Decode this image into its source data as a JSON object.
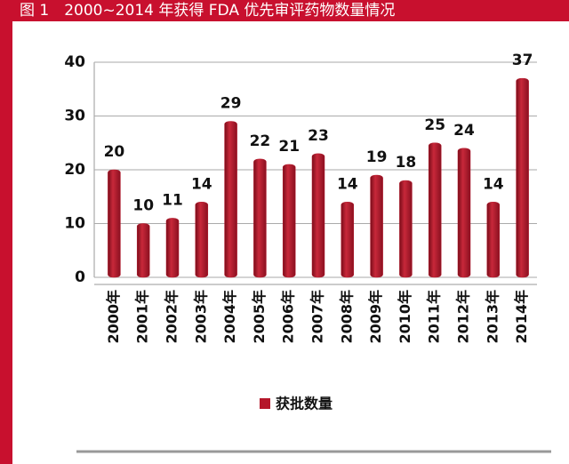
{
  "chart_data": {
    "type": "bar",
    "title": "图 1　2000~2014 年获得 FDA 优先审评药物数量情况",
    "categories": [
      "2000年",
      "2001年",
      "2002年",
      "2003年",
      "2004年",
      "2005年",
      "2006年",
      "2007年",
      "2008年",
      "2009年",
      "2010年",
      "2011年",
      "2012年",
      "2013年",
      "2014年"
    ],
    "series": [
      {
        "name": "获批数量",
        "color": "#b5172a",
        "values": [
          20,
          10,
          11,
          14,
          29,
          22,
          21,
          23,
          14,
          19,
          18,
          25,
          24,
          14,
          37
        ]
      }
    ],
    "ylim": [
      0,
      40
    ],
    "yticks": [
      0,
      10,
      20,
      30,
      40
    ],
    "grid": true
  }
}
